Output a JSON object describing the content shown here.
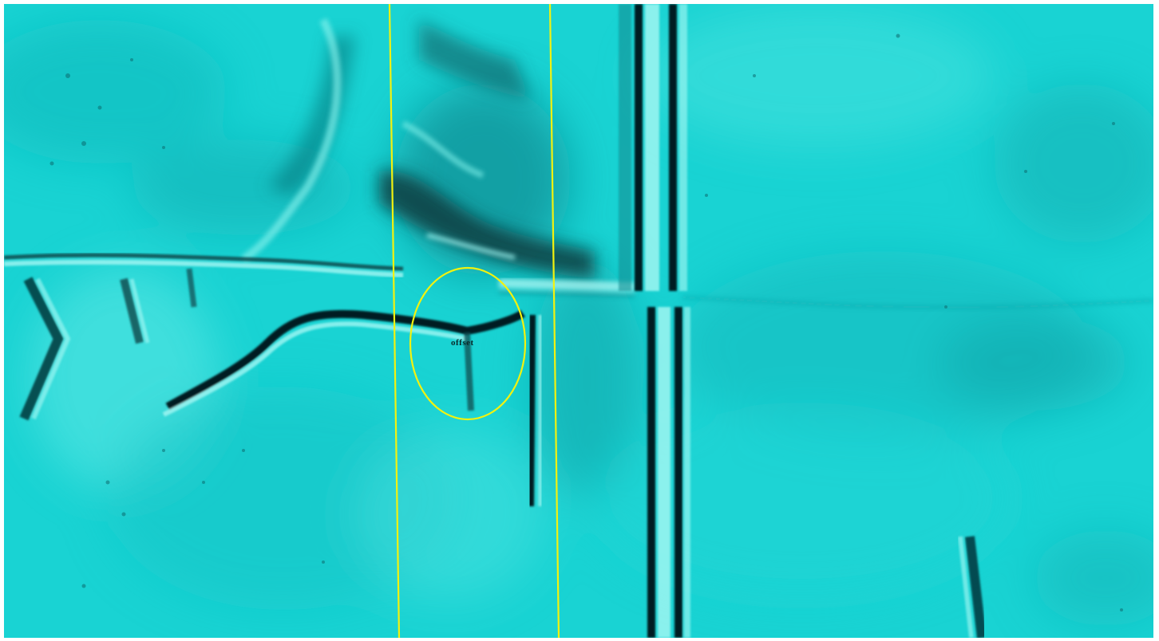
{
  "map": {
    "type": "shaded-relief-lidar",
    "base_color": "#19d3d3",
    "shadow_color": "#0b3a3c",
    "highlight_color": "#9ff7f2",
    "overlay_color": "#f2f20f",
    "annotation": {
      "label": "offset",
      "marker": "ellipse"
    }
  }
}
